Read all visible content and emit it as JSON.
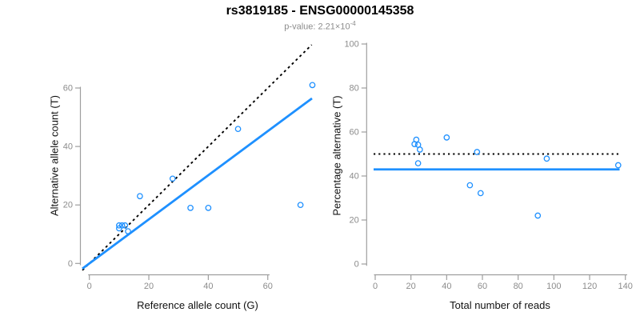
{
  "header": {
    "title": "rs3819185 - ENSG00000145358",
    "subtitle_prefix": "p-value: 2.21×10",
    "subtitle_exponent": "-4"
  },
  "colors": {
    "point_blue": "#1E90FF",
    "fit_line_blue": "#1E90FF",
    "reference_line_black": "#000000",
    "axis_line_gray": "#9e9e9e",
    "tick_label_gray": "#8c8c8c",
    "subtitle_gray": "#8c8c8c",
    "background": "#ffffff"
  },
  "chart_data": [
    {
      "type": "scatter",
      "name": "allele-counts",
      "xlabel": "Reference allele count (G)",
      "ylabel": "Alternative allele count (T)",
      "xticks": [
        0,
        20,
        40,
        60
      ],
      "yticks": [
        0,
        20,
        40,
        60
      ],
      "xlim": [
        0,
        75
      ],
      "ylim": [
        0,
        75
      ],
      "grid": false,
      "points": [
        [
          10,
          13
        ],
        [
          10,
          12
        ],
        [
          11,
          13
        ],
        [
          12,
          13
        ],
        [
          13,
          11
        ],
        [
          17,
          23
        ],
        [
          28,
          29
        ],
        [
          34,
          19
        ],
        [
          40,
          19
        ],
        [
          50,
          46
        ],
        [
          71,
          20
        ],
        [
          75,
          61
        ]
      ],
      "lines": [
        {
          "name": "identity",
          "style": "dashed",
          "color": "#000000",
          "slope": 1,
          "intercept": 0
        },
        {
          "name": "fit",
          "style": "solid",
          "color": "#1E90FF",
          "slope": 0.754,
          "intercept": 0
        }
      ]
    },
    {
      "type": "scatter",
      "name": "percentage-alternative",
      "xlabel": "Total number of reads",
      "ylabel": "Percentage alternative (T)",
      "xticks": [
        0,
        20,
        40,
        60,
        80,
        100,
        120,
        140
      ],
      "yticks": [
        0,
        20,
        40,
        60,
        80,
        100
      ],
      "xlim": [
        0,
        140
      ],
      "ylim": [
        0,
        100
      ],
      "grid": false,
      "points": [
        [
          23,
          56.5
        ],
        [
          22,
          54.5
        ],
        [
          24,
          54.2
        ],
        [
          25,
          52.0
        ],
        [
          24,
          45.8
        ],
        [
          40,
          57.5
        ],
        [
          57,
          50.9
        ],
        [
          53,
          35.8
        ],
        [
          59,
          32.2
        ],
        [
          96,
          47.9
        ],
        [
          91,
          22.0
        ],
        [
          136,
          44.9
        ]
      ],
      "lines": [
        {
          "name": "fifty-percent-reference",
          "style": "dotted",
          "color": "#000000",
          "y": 50
        },
        {
          "name": "fitted-percentage",
          "style": "solid",
          "color": "#1E90FF",
          "y": 43
        }
      ]
    }
  ]
}
